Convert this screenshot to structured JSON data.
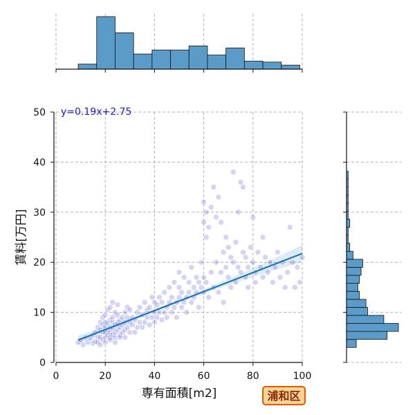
{
  "chart_data": {
    "type": "scatter",
    "xlabel": "専有面積[m2]",
    "ylabel": "賃料[万円]",
    "xlim": [
      0,
      100
    ],
    "ylim": [
      0,
      50
    ],
    "x_ticks": [
      "0",
      "20",
      "40",
      "60",
      "80",
      "100"
    ],
    "y_ticks": [
      "0",
      "10",
      "20",
      "30",
      "40",
      "50"
    ],
    "grid": true,
    "point_color": "#3a3ad0",
    "line_color": "#1f77b4",
    "hist_color": "#5a9bc8",
    "regression": {
      "slope": 0.19,
      "intercept": 2.75,
      "x_range": [
        9,
        100
      ],
      "label": "y=0.19x+2.75"
    },
    "badge": "浦和区",
    "x_hist": {
      "bins": [
        {
          "x0": 9,
          "x1": 16.5,
          "count": 5
        },
        {
          "x0": 16.5,
          "x1": 24,
          "count": 52
        },
        {
          "x0": 24,
          "x1": 31.5,
          "count": 36
        },
        {
          "x0": 31.5,
          "x1": 39,
          "count": 15
        },
        {
          "x0": 39,
          "x1": 46.5,
          "count": 19
        },
        {
          "x0": 46.5,
          "x1": 54,
          "count": 19
        },
        {
          "x0": 54,
          "x1": 61.5,
          "count": 23
        },
        {
          "x0": 61.5,
          "x1": 69,
          "count": 14
        },
        {
          "x0": 69,
          "x1": 76.5,
          "count": 21
        },
        {
          "x0": 76.5,
          "x1": 84,
          "count": 8
        },
        {
          "x0": 84,
          "x1": 91.5,
          "count": 7
        },
        {
          "x0": 91.5,
          "x1": 99,
          "count": 4
        }
      ]
    },
    "y_hist": {
      "bins": [
        {
          "y0": 3,
          "y1": 4.6,
          "count": 6
        },
        {
          "y0": 4.6,
          "y1": 6.2,
          "count": 25
        },
        {
          "y0": 6.2,
          "y1": 7.8,
          "count": 32
        },
        {
          "y0": 7.8,
          "y1": 9.4,
          "count": 23
        },
        {
          "y0": 9.4,
          "y1": 11.0,
          "count": 13
        },
        {
          "y0": 11.0,
          "y1": 12.6,
          "count": 12
        },
        {
          "y0": 12.6,
          "y1": 14.2,
          "count": 8
        },
        {
          "y0": 14.2,
          "y1": 15.8,
          "count": 7
        },
        {
          "y0": 15.8,
          "y1": 17.4,
          "count": 8
        },
        {
          "y0": 17.4,
          "y1": 19.0,
          "count": 9
        },
        {
          "y0": 19.0,
          "y1": 20.6,
          "count": 10
        },
        {
          "y0": 20.6,
          "y1": 22.2,
          "count": 4
        },
        {
          "y0": 22.2,
          "y1": 23.8,
          "count": 2
        },
        {
          "y0": 23.8,
          "y1": 25.4,
          "count": 1
        },
        {
          "y0": 25.4,
          "y1": 27.0,
          "count": 1
        },
        {
          "y0": 27.0,
          "y1": 28.6,
          "count": 2
        },
        {
          "y0": 28.6,
          "y1": 30.2,
          "count": 1
        },
        {
          "y0": 30.2,
          "y1": 31.8,
          "count": 1
        },
        {
          "y0": 31.8,
          "y1": 33.4,
          "count": 1
        },
        {
          "y0": 33.4,
          "y1": 35.0,
          "count": 1
        },
        {
          "y0": 35.0,
          "y1": 36.6,
          "count": 1
        },
        {
          "y0": 36.6,
          "y1": 38.2,
          "count": 1
        }
      ]
    },
    "points": [
      [
        9,
        4
      ],
      [
        10,
        4.5
      ],
      [
        11,
        3.5
      ],
      [
        12,
        5
      ],
      [
        13,
        4
      ],
      [
        14,
        4.8
      ],
      [
        15,
        3.8
      ],
      [
        15,
        5.5
      ],
      [
        16,
        4.2
      ],
      [
        16,
        6
      ],
      [
        17,
        5
      ],
      [
        17,
        7
      ],
      [
        17,
        4
      ],
      [
        18,
        6.5
      ],
      [
        18,
        8
      ],
      [
        18,
        5
      ],
      [
        18,
        3.5
      ],
      [
        19,
        6
      ],
      [
        19,
        7.5
      ],
      [
        19,
        9
      ],
      [
        19,
        4.5
      ],
      [
        20,
        5
      ],
      [
        20,
        6
      ],
      [
        20,
        7
      ],
      [
        20,
        8
      ],
      [
        20,
        9.5
      ],
      [
        20,
        4
      ],
      [
        21,
        5.5
      ],
      [
        21,
        6.5
      ],
      [
        21,
        7.8
      ],
      [
        21,
        10.5
      ],
      [
        22,
        5
      ],
      [
        22,
        6
      ],
      [
        22,
        7
      ],
      [
        22,
        8.5
      ],
      [
        22,
        11
      ],
      [
        22,
        4.5
      ],
      [
        23,
        5.5
      ],
      [
        23,
        6.8
      ],
      [
        23,
        8
      ],
      [
        23,
        9
      ],
      [
        23,
        12
      ],
      [
        24,
        5
      ],
      [
        24,
        6
      ],
      [
        24,
        7.5
      ],
      [
        24,
        10
      ],
      [
        24,
        4
      ],
      [
        25,
        6.5
      ],
      [
        25,
        8
      ],
      [
        25,
        9.5
      ],
      [
        25,
        11.5
      ],
      [
        26,
        5.5
      ],
      [
        26,
        7
      ],
      [
        26,
        8.5
      ],
      [
        26,
        5
      ],
      [
        27,
        6
      ],
      [
        27,
        7.5
      ],
      [
        27,
        9
      ],
      [
        28,
        6.5
      ],
      [
        28,
        8
      ],
      [
        28,
        10
      ],
      [
        28,
        5
      ],
      [
        29,
        7
      ],
      [
        29,
        9
      ],
      [
        29,
        11
      ],
      [
        30,
        6
      ],
      [
        30,
        8
      ],
      [
        30,
        10.5
      ],
      [
        31,
        7.5
      ],
      [
        31,
        9
      ],
      [
        32,
        6
      ],
      [
        32,
        8.5
      ],
      [
        33,
        7
      ],
      [
        33,
        10
      ],
      [
        34,
        8
      ],
      [
        34,
        11
      ],
      [
        35,
        7
      ],
      [
        35,
        9.5
      ],
      [
        36,
        8
      ],
      [
        36,
        12
      ],
      [
        37,
        9
      ],
      [
        37,
        10.5
      ],
      [
        38,
        7.5
      ],
      [
        38,
        11
      ],
      [
        39,
        9
      ],
      [
        39,
        13
      ],
      [
        40,
        8
      ],
      [
        40,
        10
      ],
      [
        40,
        12
      ],
      [
        41,
        9
      ],
      [
        41,
        11.5
      ],
      [
        42,
        10
      ],
      [
        42,
        13
      ],
      [
        43,
        8.5
      ],
      [
        43,
        12
      ],
      [
        44,
        10
      ],
      [
        44,
        14
      ],
      [
        45,
        11
      ],
      [
        45,
        9
      ],
      [
        46,
        12
      ],
      [
        46,
        15
      ],
      [
        47,
        10
      ],
      [
        47,
        13
      ],
      [
        48,
        11
      ],
      [
        48,
        16
      ],
      [
        49,
        12
      ],
      [
        49,
        9
      ],
      [
        50,
        13
      ],
      [
        50,
        15
      ],
      [
        50,
        18
      ],
      [
        51,
        11
      ],
      [
        51,
        14
      ],
      [
        52,
        12
      ],
      [
        52,
        17
      ],
      [
        53,
        13
      ],
      [
        53,
        10
      ],
      [
        54,
        14
      ],
      [
        54,
        16
      ],
      [
        55,
        12
      ],
      [
        55,
        19
      ],
      [
        56,
        15
      ],
      [
        56,
        13
      ],
      [
        57,
        14
      ],
      [
        57,
        17
      ],
      [
        58,
        16
      ],
      [
        58,
        11
      ],
      [
        59,
        15
      ],
      [
        59,
        20
      ],
      [
        60,
        28
      ],
      [
        60,
        32
      ],
      [
        60,
        14
      ],
      [
        60,
        17
      ],
      [
        61,
        30
      ],
      [
        61,
        25
      ],
      [
        61,
        16
      ],
      [
        62,
        27
      ],
      [
        62,
        13
      ],
      [
        63,
        31
      ],
      [
        63,
        18
      ],
      [
        64,
        35
      ],
      [
        64,
        15
      ],
      [
        65,
        29
      ],
      [
        65,
        20
      ],
      [
        66,
        33
      ],
      [
        66,
        14
      ],
      [
        67,
        28
      ],
      [
        67,
        18
      ],
      [
        68,
        22
      ],
      [
        68,
        12
      ],
      [
        69,
        19
      ],
      [
        69,
        25
      ],
      [
        70,
        17
      ],
      [
        70,
        23
      ],
      [
        71,
        21
      ],
      [
        71,
        15
      ],
      [
        72,
        38
      ],
      [
        72,
        20
      ],
      [
        73,
        16
      ],
      [
        73,
        24
      ],
      [
        74,
        19
      ],
      [
        74,
        30
      ],
      [
        75,
        36
      ],
      [
        75,
        18
      ],
      [
        76,
        22
      ],
      [
        76,
        35
      ],
      [
        77,
        17
      ],
      [
        77,
        21
      ],
      [
        78,
        19
      ],
      [
        78,
        15
      ],
      [
        79,
        23
      ],
      [
        80,
        20
      ],
      [
        80,
        29
      ],
      [
        81,
        18
      ],
      [
        81,
        16
      ],
      [
        82,
        22
      ],
      [
        83,
        19
      ],
      [
        84,
        17
      ],
      [
        84,
        25
      ],
      [
        85,
        21
      ],
      [
        86,
        18
      ],
      [
        87,
        20
      ],
      [
        88,
        16
      ],
      [
        89,
        19
      ],
      [
        90,
        22
      ],
      [
        91,
        17
      ],
      [
        92,
        20
      ],
      [
        93,
        15
      ],
      [
        94,
        18
      ],
      [
        95,
        27
      ],
      [
        96,
        20
      ],
      [
        97,
        15
      ],
      [
        98,
        19
      ],
      [
        99,
        16
      ],
      [
        100,
        21
      ]
    ]
  }
}
